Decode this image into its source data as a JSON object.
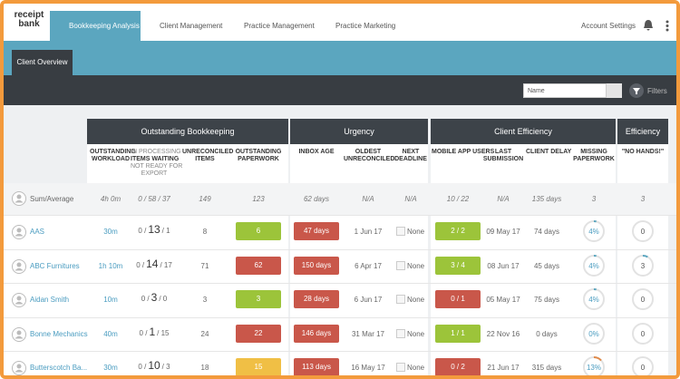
{
  "nav": {
    "logo": [
      "receipt",
      "bank"
    ],
    "tabs": [
      "Bookkeeping Analysis",
      "Client Management",
      "Practice Management",
      "Practice Marketing"
    ],
    "account": "Account Settings"
  },
  "subnav": {
    "tab": "Client Overview"
  },
  "filter": {
    "placeholder": "Name",
    "button": "Filters"
  },
  "groups": [
    "Outstanding Bookkeeping",
    "Urgency",
    "Client Efficiency",
    "Efficiency"
  ],
  "columns": [
    [
      "OUTSTANDING",
      "WORKLOAD"
    ],
    [
      "IN PROCESSING",
      "ITEMS WAITING",
      "NOT READY FOR",
      "EXPORT"
    ],
    [
      "UNRECONCILED",
      "ITEMS"
    ],
    [
      "OUTSTANDING",
      "PAPERWORK"
    ],
    [
      "INBOX AGE"
    ],
    [
      "OLDEST",
      "UNRECONCILED"
    ],
    [
      "NEXT",
      "DEADLINE"
    ],
    [
      "MOBILE APP USERS"
    ],
    [
      "LAST",
      "SUBMISSION"
    ],
    [
      "CLIENT DELAY"
    ],
    [
      "MISSING",
      "PAPERWORK"
    ],
    [
      "\"NO HANDS!\""
    ]
  ],
  "summary": {
    "name": "Sum/Average",
    "workload": "4h 0m",
    "items": "0 / 58 / 37",
    "unreconciled": 149,
    "paperwork": 123,
    "inbox_age": "62 days",
    "oldest": "N/A",
    "deadline": "N/A",
    "app_users": "10 / 22",
    "last_submission": "N/A",
    "delay": "135 days",
    "missing": 3,
    "no_hands": 3
  },
  "rows": [
    {
      "name": "AAS",
      "workload": "30m",
      "items": [
        "0 /",
        "13",
        "/ 1"
      ],
      "unreconciled": 8,
      "paperwork": 6,
      "paperwork_color": "#9cc43a",
      "inbox_age": "47 days",
      "inbox_color": "#c9574a",
      "oldest": "1 Jun 17",
      "deadline": "None",
      "app_users": "2 / 2",
      "app_color": "#9cc43a",
      "last_submission": "09 May 17",
      "delay": "74 days",
      "missing": "4%",
      "no_hands": 0
    },
    {
      "name": "ABC Furnitures",
      "workload": "1h 10m",
      "items": [
        "0 /",
        "14",
        "/ 17"
      ],
      "unreconciled": 71,
      "paperwork": 62,
      "paperwork_color": "#c9574a",
      "inbox_age": "150 days",
      "inbox_color": "#c9574a",
      "oldest": "6 Apr 17",
      "deadline": "None",
      "app_users": "3 / 4",
      "app_color": "#9cc43a",
      "last_submission": "08 Jun 17",
      "delay": "45 days",
      "missing": "4%",
      "no_hands": 3
    },
    {
      "name": "Aidan Smith",
      "workload": "10m",
      "items": [
        "0 /",
        "3",
        "/ 0"
      ],
      "unreconciled": 3,
      "paperwork": 3,
      "paperwork_color": "#9cc43a",
      "inbox_age": "28 days",
      "inbox_color": "#c9574a",
      "oldest": "6 Jun 17",
      "deadline": "None",
      "app_users": "0 / 1",
      "app_color": "#c9574a",
      "last_submission": "05 May 17",
      "delay": "75 days",
      "missing": "4%",
      "no_hands": 0
    },
    {
      "name": "Bonne Mechanics",
      "workload": "40m",
      "items": [
        "0 /",
        "1",
        "/ 15"
      ],
      "unreconciled": 24,
      "paperwork": 22,
      "paperwork_color": "#c9574a",
      "inbox_age": "146 days",
      "inbox_color": "#c9574a",
      "oldest": "31 Mar 17",
      "deadline": "None",
      "app_users": "1 / 1",
      "app_color": "#9cc43a",
      "last_submission": "22 Nov 16",
      "delay": "0 days",
      "missing": "0%",
      "no_hands": 0
    },
    {
      "name": "Butterscotch Ba...",
      "workload": "30m",
      "items": [
        "0 /",
        "10",
        "/ 3"
      ],
      "unreconciled": 18,
      "paperwork": 15,
      "paperwork_color": "#f0bf45",
      "inbox_age": "113 days",
      "inbox_color": "#c9574a",
      "oldest": "16 May 17",
      "deadline": "None",
      "app_users": "0 / 2",
      "app_color": "#c9574a",
      "last_submission": "21 Jun 17",
      "delay": "315 days",
      "missing": "13%",
      "no_hands": 0
    }
  ]
}
